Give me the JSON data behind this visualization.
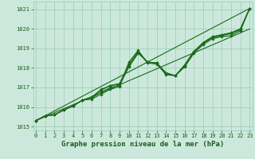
{
  "x_values": [
    0,
    1,
    2,
    3,
    4,
    5,
    6,
    7,
    8,
    9,
    10,
    11,
    12,
    13,
    14,
    15,
    16,
    17,
    18,
    19,
    20,
    21,
    22,
    23
  ],
  "series": [
    [
      1015.3,
      1015.55,
      1015.6,
      1015.85,
      1016.05,
      1016.35,
      1016.4,
      1016.65,
      1016.9,
      1017.05,
      1018.3,
      1018.9,
      1018.25,
      1018.2,
      1017.65,
      1017.6,
      1018.05,
      1018.75,
      1019.2,
      1019.5,
      1019.6,
      1019.65,
      1019.9,
      1021.05
    ],
    [
      1015.3,
      1015.55,
      1015.6,
      1015.85,
      1016.05,
      1016.35,
      1016.45,
      1016.75,
      1017.0,
      1017.1,
      1018.05,
      1018.75,
      1018.3,
      1018.25,
      1017.7,
      1017.6,
      1018.1,
      1018.8,
      1019.25,
      1019.55,
      1019.65,
      1019.75,
      1019.95,
      1021.05
    ],
    [
      1015.3,
      1015.55,
      1015.6,
      1015.85,
      1016.05,
      1016.35,
      1016.5,
      1016.85,
      1017.1,
      1017.15,
      1018.1,
      1018.8,
      1018.3,
      1018.25,
      1017.75,
      1017.6,
      1018.15,
      1018.85,
      1019.3,
      1019.6,
      1019.7,
      1019.8,
      1020.0,
      1021.05
    ],
    [
      1015.3,
      1015.55,
      1015.6,
      1015.85,
      1016.05,
      1016.35,
      1016.5,
      1016.9,
      1017.1,
      1017.2,
      1018.2,
      1018.85,
      1018.3,
      1018.25,
      1017.75,
      1017.6,
      1018.15,
      1018.85,
      1019.3,
      1019.6,
      1019.7,
      1019.8,
      1020.0,
      1021.05
    ]
  ],
  "straight_lines": [
    [
      [
        0,
        1015.3
      ],
      [
        23,
        1021.05
      ]
    ],
    [
      [
        0,
        1015.3
      ],
      [
        23,
        1020.0
      ]
    ]
  ],
  "line_color": "#1a6b1a",
  "marker": "D",
  "marker_size": 1.8,
  "bg_color": "#cce8dc",
  "grid_color": "#99ccb3",
  "ylim": [
    1014.8,
    1021.4
  ],
  "xlim": [
    -0.3,
    23.3
  ],
  "yticks": [
    1015,
    1016,
    1017,
    1018,
    1019,
    1020,
    1021
  ],
  "xticks": [
    0,
    1,
    2,
    3,
    4,
    5,
    6,
    7,
    8,
    9,
    10,
    11,
    12,
    13,
    14,
    15,
    16,
    17,
    18,
    19,
    20,
    21,
    22,
    23
  ],
  "xlabel": "Graphe pression niveau de la mer (hPa)",
  "xlabel_fontsize": 6.5,
  "tick_fontsize": 5.0,
  "label_color": "#1a5c1a",
  "line_width": 0.8
}
